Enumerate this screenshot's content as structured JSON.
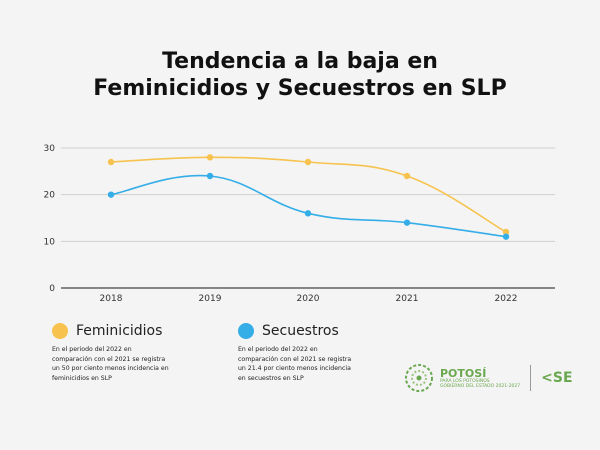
{
  "title_line1": "Tendencia a la baja en",
  "title_line2": "Feminicidios y Secuestros en SLP",
  "legend": [
    {
      "name": "Feminicidios",
      "color": "#f7c34e",
      "note": "En el periodo del 2022 en comparación con el 2021 se registra un 50  por ciento menos incidencia en feminicidios en SLP"
    },
    {
      "name": "Secuestros",
      "color": "#35aee8",
      "note": "En el periodo del 2022 en comparación con el 2021 se registra un 21.4 por ciento menos incidencia en secuestros en SLP"
    }
  ],
  "logos": {
    "potosi": "POTOSÍ",
    "potosi_sub": "PARA LOS POTOSINOS",
    "potosi_sub2": "GOBIERNO DEL ESTADO 2021-2027",
    "sse": "SE"
  },
  "chart_data": {
    "type": "line",
    "categories": [
      "2018",
      "2019",
      "2020",
      "2021",
      "2022"
    ],
    "series": [
      {
        "name": "Feminicidios",
        "values": [
          27,
          28,
          27,
          24,
          12
        ],
        "color": "#f7c34e"
      },
      {
        "name": "Secuestros",
        "values": [
          20,
          24,
          16,
          14,
          11
        ],
        "color": "#35aee8"
      }
    ],
    "ylim": [
      0,
      30
    ],
    "yticks": [
      0,
      10,
      20,
      30
    ],
    "grid": true,
    "legend_position": "bottom-left"
  }
}
